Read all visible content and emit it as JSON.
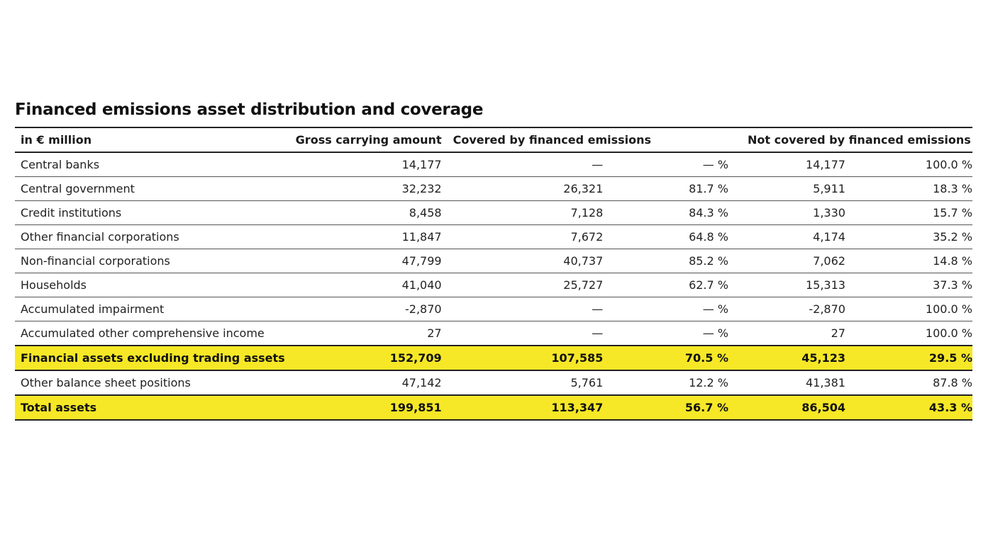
{
  "title": "Financed emissions asset distribution and coverage",
  "highlight_color": "#f6e826",
  "headers": {
    "unit": "in € million",
    "gross": "Gross carrying amount",
    "covered": "Covered by financed emissions",
    "not_covered": "Not covered by financed emissions"
  },
  "rows": [
    {
      "label": "Central banks",
      "gross": "14,177",
      "cov": "—",
      "cov_pct": "— %",
      "ncov": "14,177",
      "ncov_pct": "100.0 %"
    },
    {
      "label": "Central government",
      "gross": "32,232",
      "cov": "26,321",
      "cov_pct": "81.7 %",
      "ncov": "5,911",
      "ncov_pct": "18.3 %"
    },
    {
      "label": "Credit institutions",
      "gross": "8,458",
      "cov": "7,128",
      "cov_pct": "84.3 %",
      "ncov": "1,330",
      "ncov_pct": "15.7 %"
    },
    {
      "label": "Other financial corporations",
      "gross": "11,847",
      "cov": "7,672",
      "cov_pct": "64.8 %",
      "ncov": "4,174",
      "ncov_pct": "35.2 %"
    },
    {
      "label": "Non-financial corporations",
      "gross": "47,799",
      "cov": "40,737",
      "cov_pct": "85.2 %",
      "ncov": "7,062",
      "ncov_pct": "14.8 %"
    },
    {
      "label": "Households",
      "gross": "41,040",
      "cov": "25,727",
      "cov_pct": "62.7 %",
      "ncov": "15,313",
      "ncov_pct": "37.3 %"
    },
    {
      "label": "Accumulated impairment",
      "gross": "-2,870",
      "cov": "—",
      "cov_pct": "— %",
      "ncov": "-2,870",
      "ncov_pct": "100.0 %"
    },
    {
      "label": "Accumulated other comprehensive income",
      "gross": "27",
      "cov": "—",
      "cov_pct": "— %",
      "ncov": "27",
      "ncov_pct": "100.0 %"
    },
    {
      "label": "Financial assets excluding trading assets",
      "gross": "152,709",
      "cov": "107,585",
      "cov_pct": "70.5 %",
      "ncov": "45,123",
      "ncov_pct": "29.5 %"
    },
    {
      "label": "Other balance sheet positions",
      "gross": "47,142",
      "cov": "5,761",
      "cov_pct": "12.2 %",
      "ncov": "41,381",
      "ncov_pct": "87.8 %"
    },
    {
      "label": "Total assets",
      "gross": "199,851",
      "cov": "113,347",
      "cov_pct": "56.7 %",
      "ncov": "86,504",
      "ncov_pct": "43.3 %"
    }
  ]
}
